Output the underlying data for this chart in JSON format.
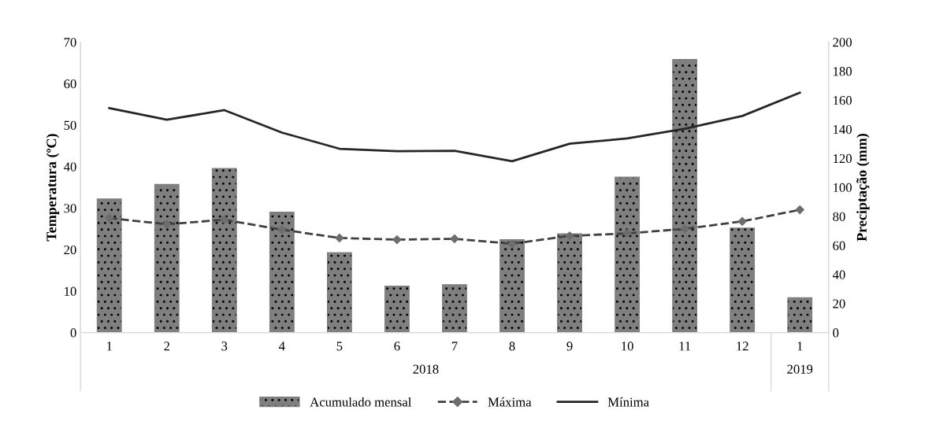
{
  "chart_data": {
    "type": "bar",
    "categories": [
      "1",
      "2",
      "3",
      "4",
      "5",
      "6",
      "7",
      "8",
      "9",
      "10",
      "11",
      "12",
      "1"
    ],
    "ylabel": "Temperatura (ºC)",
    "y2label": "Preciptação (mm)",
    "ylim": [
      0,
      70
    ],
    "yticks": [
      0,
      10,
      20,
      30,
      40,
      50,
      60,
      70
    ],
    "y2lim": [
      0,
      200
    ],
    "y2ticks": [
      0,
      20,
      40,
      60,
      80,
      100,
      120,
      140,
      160,
      180,
      200
    ],
    "annotations": [
      "2018",
      "2019"
    ],
    "grid": false,
    "legend": "bottom",
    "series": [
      {
        "name": "Acumulado mensal",
        "axis": "y2",
        "color": "#7f7f7f",
        "values": [
          92,
          102,
          113,
          83,
          55,
          32,
          33,
          64,
          68,
          107,
          188,
          72,
          24
        ]
      },
      {
        "name": "Máxima",
        "type": "line",
        "axis": "y",
        "color": "#404040",
        "marker": "diamond",
        "line_style": "dashed",
        "values": [
          27.6,
          26.1,
          27.2,
          24.8,
          22.8,
          22.4,
          22.6,
          21.4,
          23.3,
          23.9,
          25.0,
          26.8,
          29.6
        ]
      },
      {
        "name": "Mínima",
        "type": "line",
        "axis": "y",
        "color": "#262626",
        "marker": "none",
        "line_style": "solid",
        "values": [
          54.1,
          51.3,
          53.6,
          48.2,
          44.3,
          43.7,
          43.8,
          41.3,
          45.5,
          46.8,
          49.1,
          52.2,
          57.8
        ]
      }
    ]
  }
}
